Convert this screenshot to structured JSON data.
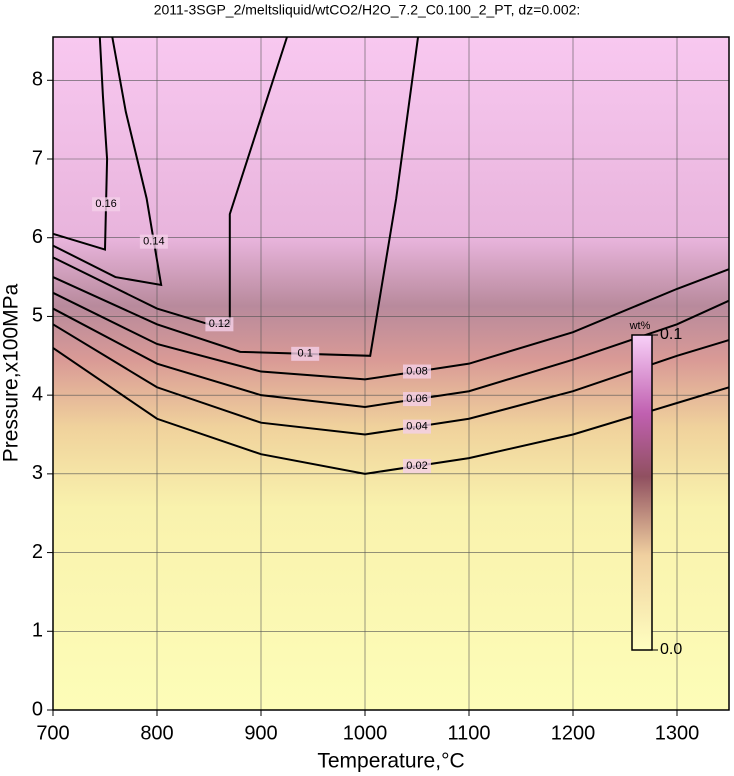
{
  "chart_data": {
    "type": "contour",
    "title": "2011-3SGP_2/meltsliquid/wtCO2/H2O_7.2_C0.100_2_PT, dz=0.002:",
    "x_label": "Temperature,°C",
    "y_label": "Pressure,x100MPa",
    "xlim": [
      700,
      1350
    ],
    "ylim": [
      0,
      8.55
    ],
    "xticks": [
      700,
      800,
      900,
      1000,
      1100,
      1200,
      1300
    ],
    "yticks": [
      0,
      1,
      2,
      3,
      4,
      5,
      6,
      7,
      8
    ],
    "grid": true,
    "series": [
      {
        "level": 0.02,
        "x": [
          700,
          800,
          900,
          1000,
          1100,
          1200,
          1300,
          1350
        ],
        "y": [
          4.6,
          3.7,
          3.25,
          3.0,
          3.2,
          3.5,
          3.9,
          4.1
        ]
      },
      {
        "level": 0.04,
        "x": [
          700,
          800,
          900,
          1000,
          1100,
          1200,
          1300,
          1350
        ],
        "y": [
          4.9,
          4.1,
          3.65,
          3.5,
          3.7,
          4.05,
          4.5,
          4.7
        ]
      },
      {
        "level": 0.06,
        "x": [
          700,
          800,
          900,
          1000,
          1100,
          1200,
          1300,
          1350
        ],
        "y": [
          5.1,
          4.4,
          4.0,
          3.85,
          4.05,
          4.45,
          4.9,
          5.2
        ]
      },
      {
        "level": 0.08,
        "x": [
          700,
          800,
          900,
          1000,
          1100,
          1200,
          1300,
          1350
        ],
        "y": [
          5.3,
          4.65,
          4.3,
          4.2,
          4.4,
          4.8,
          5.35,
          5.6
        ]
      },
      {
        "level": 0.1,
        "x": [
          700,
          800,
          880,
          1005,
          1030,
          1051
        ],
        "y": [
          5.5,
          4.9,
          4.55,
          4.5,
          6.5,
          8.55
        ]
      },
      {
        "level": 0.12,
        "x": [
          700,
          800,
          850,
          870,
          870,
          925
        ],
        "y": [
          5.75,
          5.1,
          4.9,
          4.9,
          6.3,
          8.55
        ]
      },
      {
        "level": 0.14,
        "x": [
          700,
          760,
          804,
          790,
          770,
          757
        ],
        "y": [
          5.9,
          5.5,
          5.4,
          6.5,
          7.6,
          8.55
        ]
      },
      {
        "level": 0.16,
        "x": [
          700,
          750,
          752,
          748,
          745
        ],
        "y": [
          6.05,
          5.85,
          7.0,
          7.8,
          8.55
        ]
      }
    ],
    "colorbar": {
      "label": "wt%",
      "lim": [
        0,
        0.1
      ],
      "ticks": [
        {
          "value": 0,
          "label": "0.0"
        },
        0.1
      ]
    }
  }
}
